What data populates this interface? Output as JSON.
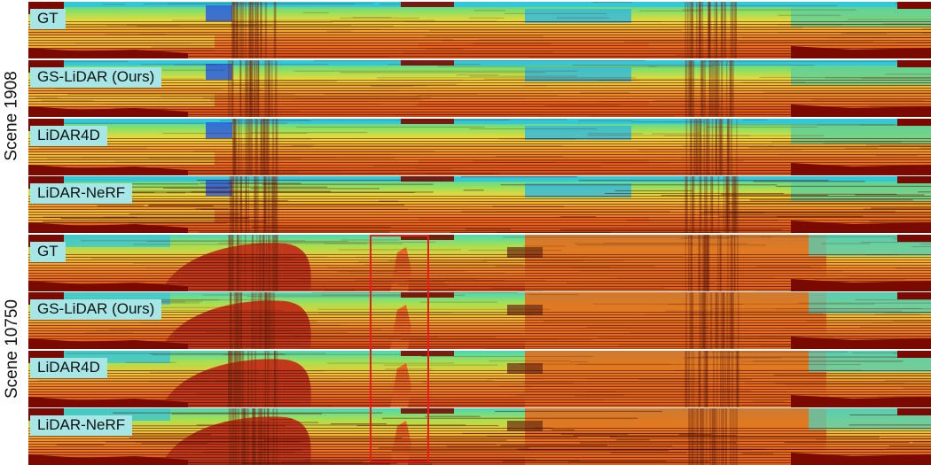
{
  "scenes": [
    {
      "label": "Scene 1908",
      "rows": [
        "GT",
        "GS-LiDAR (Ours)",
        "LiDAR4D",
        "LiDAR-NeRF"
      ]
    },
    {
      "label": "Scene 10750",
      "rows": [
        "GT",
        "GS-LiDAR (Ours)",
        "LiDAR4D",
        "LiDAR-NeRF"
      ]
    }
  ],
  "colors": {
    "tag_background": "#a7e6e6",
    "highlight_box": "#e81c1c",
    "depth_near": "#7a0a00",
    "depth_far": "#2a4bd8"
  },
  "image_type": "LiDAR range-image depth maps (jet colormap)"
}
